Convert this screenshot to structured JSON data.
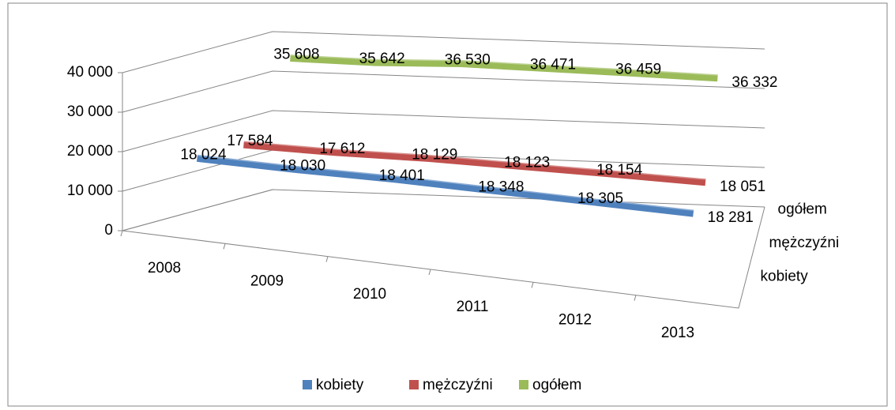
{
  "chart_data": {
    "type": "line3d",
    "categories": [
      "2008",
      "2009",
      "2010",
      "2011",
      "2012",
      "2013"
    ],
    "series": [
      {
        "name": "kobiety",
        "color": "#4f81bd",
        "values": [
          18024,
          18030,
          18401,
          18348,
          18305,
          18281
        ],
        "value_labels": [
          "18 024",
          "18 030",
          "18 401",
          "18 348",
          "18 305",
          "18 281"
        ]
      },
      {
        "name": "mężczyźni",
        "color": "#c0504d",
        "values": [
          17584,
          17612,
          18129,
          18123,
          18154,
          18051
        ],
        "value_labels": [
          "17 584",
          "17 612",
          "18 129",
          "18 123",
          "18 154",
          "18 051"
        ]
      },
      {
        "name": "ogółem",
        "color": "#9bbb59",
        "values": [
          35608,
          35642,
          36530,
          36471,
          36459,
          36332
        ],
        "value_labels": [
          "35 608",
          "35 642",
          "36 530",
          "36 471",
          "36 459",
          "36 332"
        ]
      }
    ],
    "ylim": [
      0,
      40000
    ],
    "yticks": [
      0,
      {
        "value": 10000,
        "label": "10 000"
      },
      {
        "value": 20000,
        "label": "20 000"
      },
      {
        "value": 30000,
        "label": "30 000"
      },
      {
        "value": 40000,
        "label": "40 000"
      }
    ],
    "grid": true,
    "legend": "bottom"
  }
}
